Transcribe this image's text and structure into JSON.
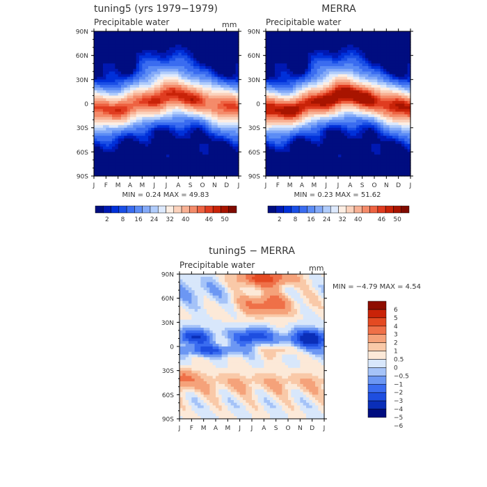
{
  "chart_data": [
    {
      "type": "heatmap",
      "title": "tuning5 (yrs 1979−1979)",
      "subtitle": "Precipitable water",
      "units": "mm",
      "stats": "MIN =    0.24  MAX =    49.83",
      "min": 0.24,
      "max": 49.83,
      "x_ticks": [
        "J",
        "F",
        "M",
        "A",
        "M",
        "J",
        "J",
        "A",
        "S",
        "O",
        "N",
        "D",
        "J"
      ],
      "y_ticks": [
        "90N",
        "60N",
        "30N",
        "0",
        "30S",
        "60S",
        "90S"
      ],
      "colorbar_ticks": [
        "2",
        "8",
        "16",
        "24",
        "32",
        "40",
        "46",
        "50"
      ],
      "colorbar_levels": [
        0,
        2,
        4,
        6,
        8,
        12,
        16,
        20,
        24,
        28,
        32,
        36,
        40,
        44,
        46,
        48,
        50,
        55
      ],
      "eq_peak": 46,
      "eq_lat_offset": 8
    },
    {
      "type": "heatmap",
      "title": "MERRA",
      "subtitle": "Precipitable water",
      "units": "",
      "stats": "MIN =    0.23  MAX =    51.62",
      "min": 0.23,
      "max": 51.62,
      "x_ticks": [
        "J",
        "F",
        "M",
        "A",
        "M",
        "J",
        "J",
        "A",
        "S",
        "O",
        "N",
        "D",
        "J"
      ],
      "y_ticks": [
        "90N",
        "60N",
        "30N",
        "0",
        "30S",
        "60S",
        "90S"
      ],
      "colorbar_ticks": [
        "2",
        "8",
        "16",
        "24",
        "32",
        "40",
        "46",
        "50"
      ],
      "colorbar_levels": [
        0,
        2,
        4,
        6,
        8,
        12,
        16,
        20,
        24,
        28,
        32,
        36,
        40,
        44,
        46,
        48,
        50,
        55
      ],
      "eq_peak": 50,
      "eq_lat_offset": 9
    },
    {
      "type": "heatmap",
      "title": "tuning5 − MERRA",
      "subtitle": "Precipitable water",
      "units": "mm",
      "stats": "MIN =  −4.79  MAX =    4.54",
      "min": -4.79,
      "max": 4.54,
      "x_ticks": [
        "J",
        "F",
        "M",
        "A",
        "M",
        "J",
        "J",
        "A",
        "S",
        "O",
        "N",
        "D",
        "J"
      ],
      "y_ticks": [
        "90N",
        "60N",
        "30N",
        "0",
        "30S",
        "60S",
        "90S"
      ],
      "colorbar_ticks": [
        "6",
        "5",
        "4",
        "3",
        "2",
        "1",
        "0.5",
        "0",
        "−0.5",
        "−1",
        "−2",
        "−3",
        "−4",
        "−5",
        "−6"
      ],
      "colorbar_levels": [
        -6,
        -5,
        -4,
        -3,
        -2,
        -1,
        -0.5,
        0,
        0.5,
        1,
        2,
        3,
        4,
        5,
        6
      ]
    }
  ],
  "colors": {
    "seq": [
      "#000d80",
      "#0019b3",
      "#0030d9",
      "#1a4fe6",
      "#3a6cf0",
      "#5c8cf5",
      "#84aaf8",
      "#b0ccfb",
      "#dde9fd",
      "#fdeee3",
      "#fbd2bc",
      "#f8b194",
      "#f48b6a",
      "#ee6342",
      "#e03c20",
      "#c92308",
      "#a81400",
      "#800a00"
    ],
    "div": [
      "#000d80",
      "#0a2eb8",
      "#1e4ee0",
      "#3a6cf0",
      "#6c97f3",
      "#a5c3f8",
      "#d8e7fb",
      "#fce9d8",
      "#f9c9a8",
      "#f5a27a",
      "#ef7048",
      "#e44a22",
      "#c92308",
      "#8e0d00"
    ]
  }
}
